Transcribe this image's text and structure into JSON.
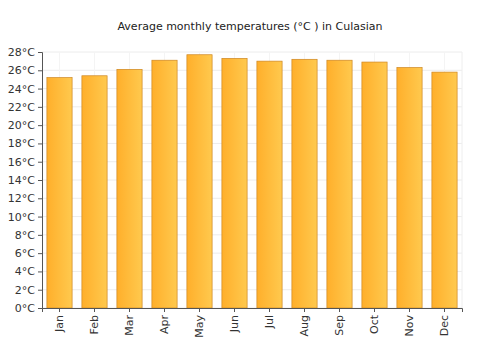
{
  "chart_data": {
    "type": "bar",
    "title": "Average monthly temperatures (°C ) in Culasian",
    "categories": [
      "Jan",
      "Feb",
      "Mar",
      "Apr",
      "May",
      "Jun",
      "Jul",
      "Aug",
      "Sep",
      "Oct",
      "Nov",
      "Dec"
    ],
    "values": [
      25.2,
      25.4,
      26.1,
      27.1,
      27.7,
      27.3,
      27.0,
      27.2,
      27.1,
      26.9,
      26.3,
      25.8
    ],
    "color": "#ffa629",
    "ylim": [
      0,
      28
    ],
    "yticks": [
      {
        "value": 0,
        "label": "0°C"
      },
      {
        "value": 2,
        "label": "2°C"
      },
      {
        "value": 4,
        "label": "4°C"
      },
      {
        "value": 6,
        "label": "6°C"
      },
      {
        "value": 8,
        "label": "8°C"
      },
      {
        "value": 10,
        "label": "10°C"
      },
      {
        "value": 12,
        "label": "12°C"
      },
      {
        "value": 14,
        "label": "14°C"
      },
      {
        "value": 16,
        "label": "16°C"
      },
      {
        "value": 18,
        "label": "18°C"
      },
      {
        "value": 20,
        "label": "20°C"
      },
      {
        "value": 22,
        "label": "22°C"
      },
      {
        "value": 24,
        "label": "24°C"
      },
      {
        "value": 26,
        "label": "26°C"
      },
      {
        "value": 28,
        "label": "28°C"
      }
    ],
    "grid": true
  }
}
